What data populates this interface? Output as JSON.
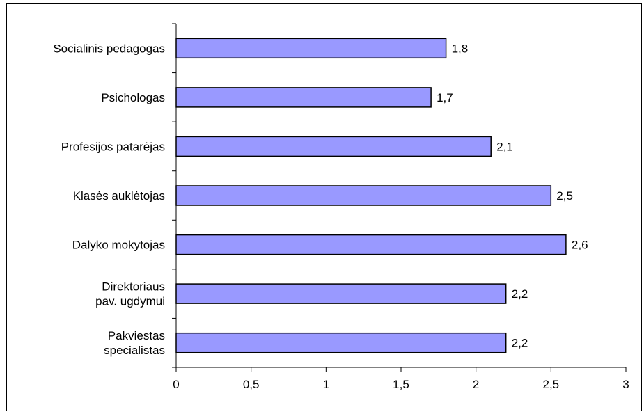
{
  "chart_data": {
    "type": "bar",
    "orientation": "horizontal",
    "categories": [
      "Socialinis pedagogas",
      "Psichologas",
      "Profesijos patarėjas",
      "Klasės auklėtojas",
      "Dalyko mokytojas",
      "Direktoriaus pav. ugdymui",
      "Pakviestas specialistas"
    ],
    "values": [
      1.8,
      1.7,
      2.1,
      2.5,
      2.6,
      2.2,
      2.2
    ],
    "value_labels": [
      "1,8",
      "1,7",
      "2,1",
      "2,5",
      "2,6",
      "2,2",
      "2,2"
    ],
    "xlim": [
      0,
      3
    ],
    "x_ticks": [
      0,
      0.5,
      1,
      1.5,
      2,
      2.5,
      3
    ],
    "x_tick_labels": [
      "0",
      "0,5",
      "1",
      "1,5",
      "2",
      "2,5",
      "3"
    ],
    "grid": false,
    "legend": "none",
    "colors": {
      "bar_fill": "#9999ff",
      "bar_stroke": "#000000",
      "axis": "#000000",
      "frame": "#000000"
    }
  }
}
